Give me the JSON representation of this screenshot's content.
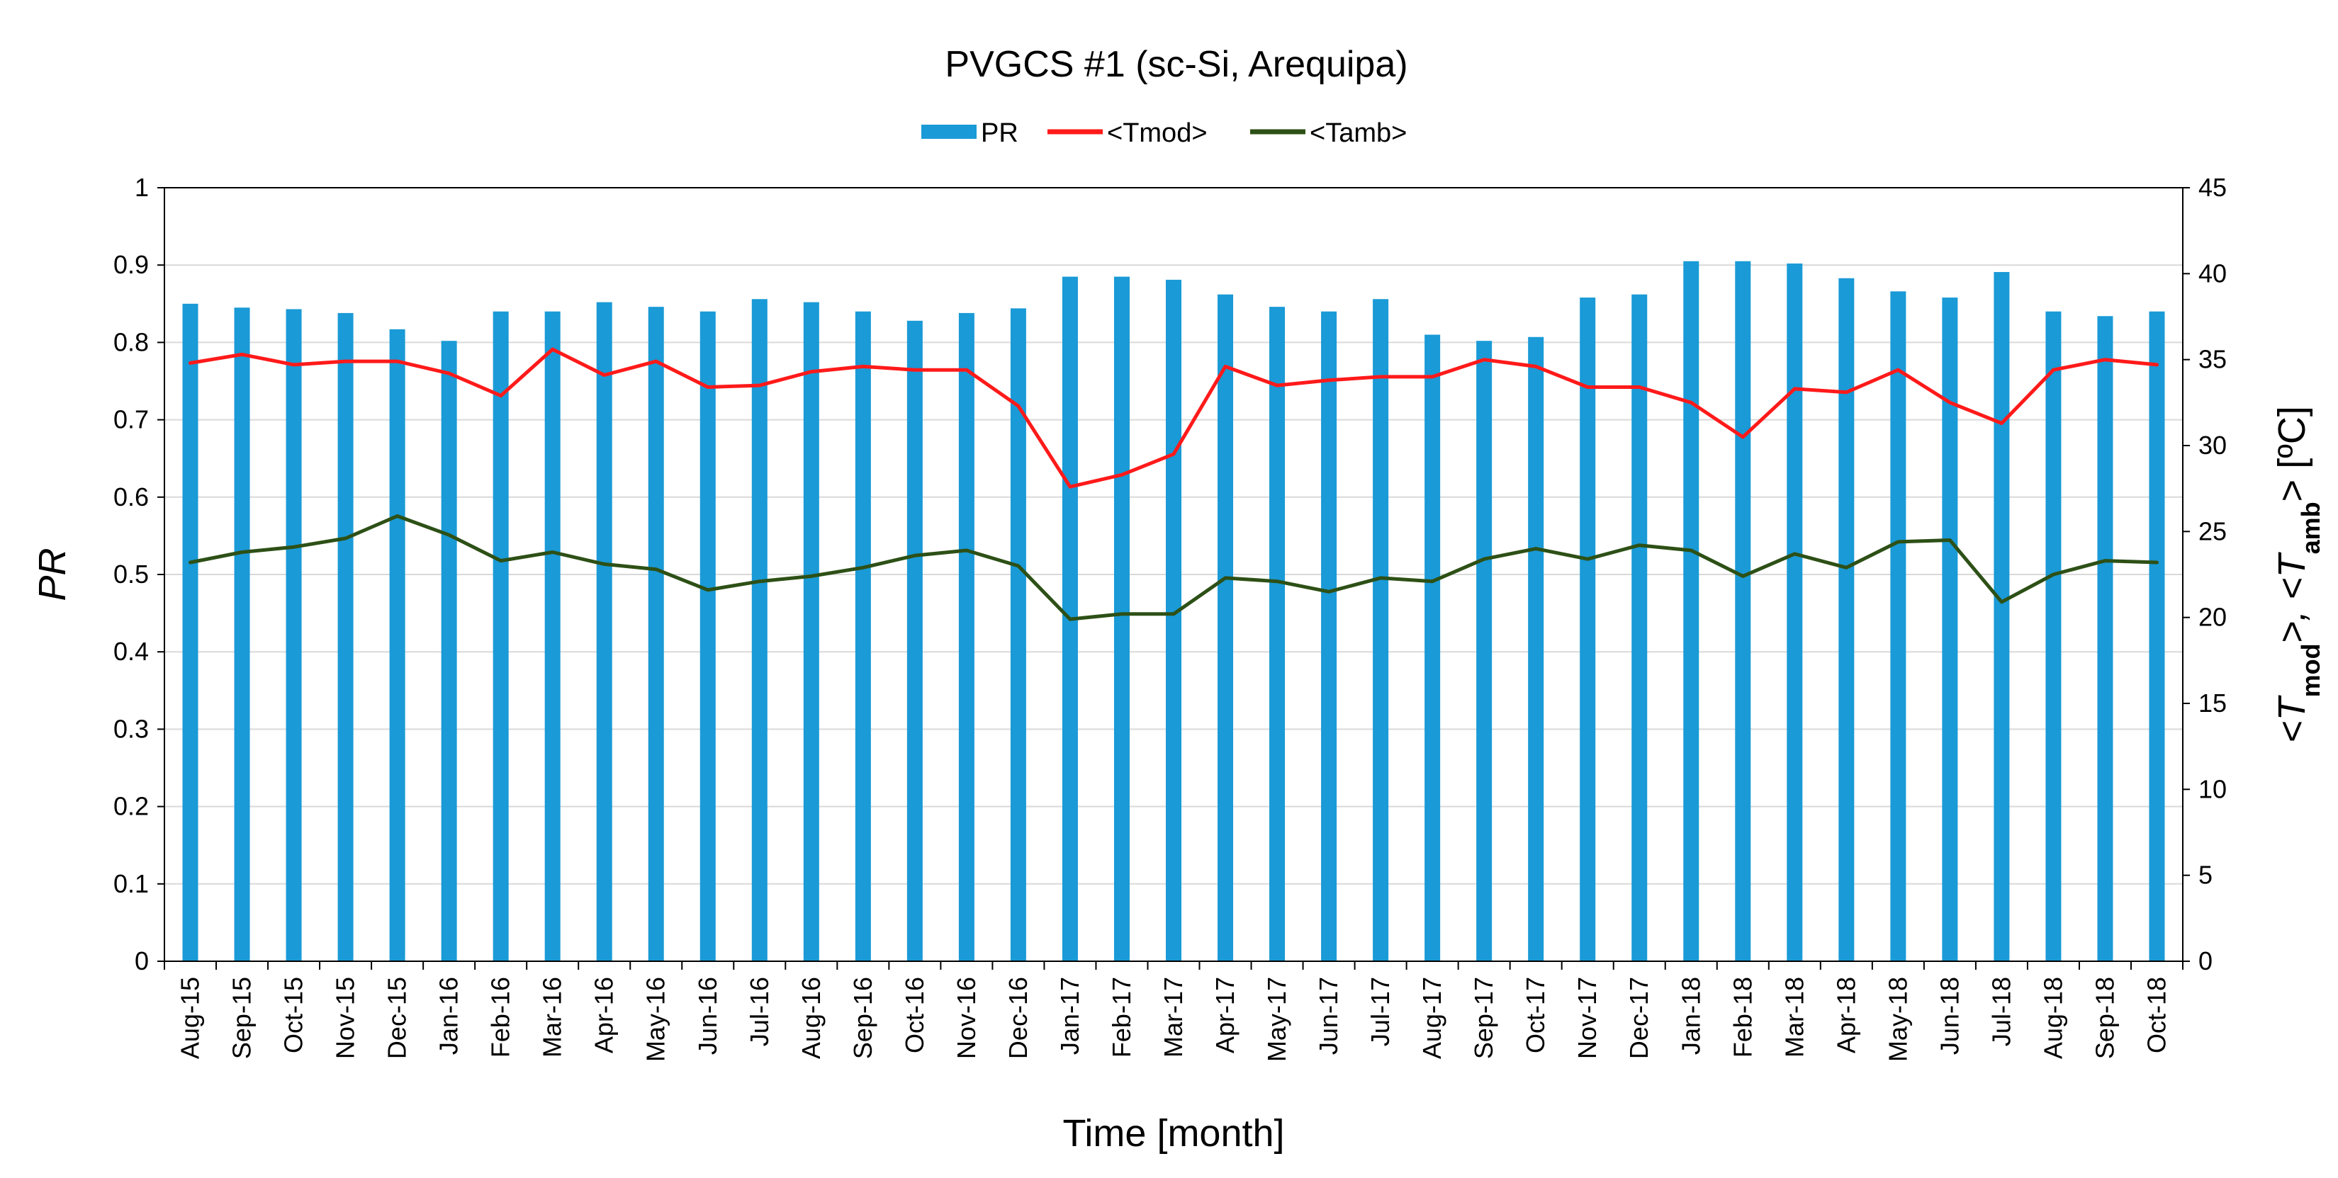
{
  "chart_data": {
    "type": "bar",
    "title": "PVGCS #1 (sc-Si, Arequipa)",
    "xlabel": "Time [month]",
    "ylabel": "PR",
    "y2label": {
      "part1": "<T",
      "sub1": "mod",
      "part2": ">, <T",
      "sub2": "amb",
      "part3": "> [ºC]"
    },
    "ylim": [
      0,
      1
    ],
    "y2lim": [
      0,
      45
    ],
    "yticks": [
      "0",
      "0.1",
      "0.2",
      "0.3",
      "0.4",
      "0.5",
      "0.6",
      "0.7",
      "0.8",
      "0.9",
      "1"
    ],
    "y2ticks": [
      "0",
      "5",
      "10",
      "15",
      "20",
      "25",
      "30",
      "35",
      "40",
      "45"
    ],
    "grid": true,
    "legend": {
      "position": "top-center",
      "entries": [
        "PR",
        "<Tmod>",
        "<Tamb>"
      ]
    },
    "categories": [
      "Aug-15",
      "Sep-15",
      "Oct-15",
      "Nov-15",
      "Dec-15",
      "Jan-16",
      "Feb-16",
      "Mar-16",
      "Apr-16",
      "May-16",
      "Jun-16",
      "Jul-16",
      "Aug-16",
      "Sep-16",
      "Oct-16",
      "Nov-16",
      "Dec-16",
      "Jan-17",
      "Feb-17",
      "Mar-17",
      "Apr-17",
      "May-17",
      "Jun-17",
      "Jul-17",
      "Aug-17",
      "Sep-17",
      "Oct-17",
      "Nov-17",
      "Dec-17",
      "Jan-18",
      "Feb-18",
      "Mar-18",
      "Apr-18",
      "May-18",
      "Jun-18",
      "Jul-18",
      "Aug-18",
      "Sep-18",
      "Oct-18"
    ],
    "series": [
      {
        "name": "PR",
        "kind": "bar",
        "axis": "left",
        "color": "#1a9ad6",
        "values": [
          0.85,
          0.845,
          0.843,
          0.838,
          0.817,
          0.802,
          0.84,
          0.84,
          0.852,
          0.846,
          0.84,
          0.856,
          0.852,
          0.84,
          0.828,
          0.838,
          0.844,
          0.885,
          0.885,
          0.881,
          0.862,
          0.846,
          0.84,
          0.856,
          0.81,
          0.802,
          0.807,
          0.858,
          0.862,
          0.905,
          0.905,
          0.902,
          0.883,
          0.866,
          0.858,
          0.891,
          0.84,
          0.834,
          0.84
        ]
      },
      {
        "name": "<Tmod>",
        "kind": "line",
        "axis": "right",
        "color": "#ff1a1a",
        "values": [
          34.8,
          35.3,
          34.7,
          34.9,
          34.9,
          34.2,
          32.9,
          35.6,
          34.1,
          34.9,
          33.4,
          33.5,
          34.3,
          34.6,
          34.4,
          34.4,
          32.3,
          27.6,
          28.3,
          29.5,
          34.6,
          33.5,
          33.8,
          34.0,
          34.0,
          35.0,
          34.6,
          33.4,
          33.4,
          32.5,
          30.5,
          33.3,
          33.1,
          34.4,
          32.5,
          31.3,
          34.4,
          35.0,
          34.7
        ]
      },
      {
        "name": "<Tamb>",
        "kind": "line",
        "axis": "right",
        "color": "#2d5016",
        "values": [
          23.2,
          23.8,
          24.1,
          24.6,
          25.9,
          24.8,
          23.3,
          23.8,
          23.1,
          22.8,
          21.6,
          22.1,
          22.4,
          22.9,
          23.6,
          23.9,
          23.0,
          19.9,
          20.2,
          20.2,
          22.3,
          22.1,
          21.5,
          22.3,
          22.1,
          23.4,
          24.0,
          23.4,
          24.2,
          23.9,
          22.4,
          23.7,
          22.9,
          24.4,
          24.5,
          20.9,
          22.5,
          23.3,
          23.2
        ]
      }
    ]
  }
}
